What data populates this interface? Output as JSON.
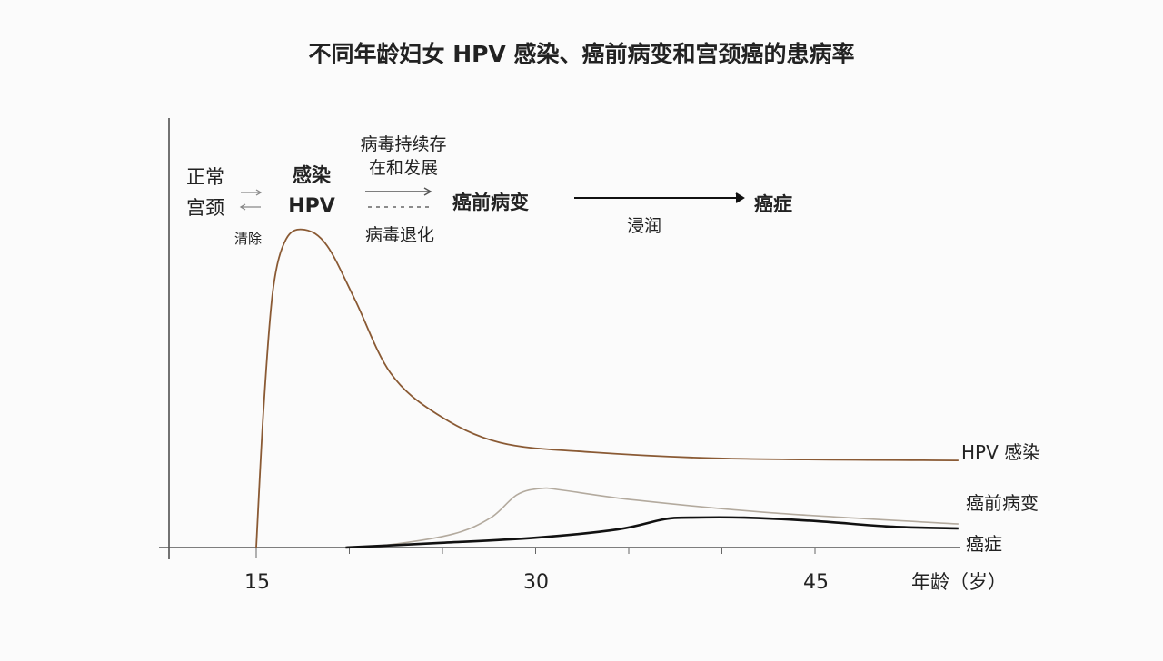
{
  "chart_data": {
    "type": "line",
    "title": "不同年龄妇女 HPV 感染、癌前病变和宫颈癌的患病率",
    "xlabel": "年龄（岁）",
    "ylabel": "",
    "xlim": [
      10,
      53
    ],
    "ylim": [
      0,
      135
    ],
    "x_ticks": [
      15,
      30,
      45
    ],
    "x_tick_labels": [
      "15",
      "30",
      "45"
    ],
    "grid": false,
    "colors": {
      "hpv": "#8a5a34",
      "precancer": "#b3aa9e",
      "cancer": "#111111"
    },
    "series": [
      {
        "name": "HPV 感染",
        "key": "hpv",
        "x": [
          15,
          15.4,
          15.9,
          16.6,
          17.6,
          18.8,
          20.3,
          22.2,
          24.7,
          28.1,
          33,
          40.3,
          52.7
        ],
        "y": [
          0,
          44,
          81,
          97,
          100,
          95,
          78,
          55,
          42,
          33,
          30,
          28,
          27.4
        ]
      },
      {
        "name": "癌前病变",
        "key": "precancer",
        "x": [
          19.8,
          22.2,
          25.6,
          27.6,
          29,
          30.3,
          31.5,
          35.4,
          42.7,
          52.7
        ],
        "y": [
          0,
          0.9,
          4.3,
          9.4,
          16.6,
          18.6,
          18,
          14.9,
          10.9,
          7.4
        ]
      },
      {
        "name": "癌症",
        "key": "cancer",
        "x": [
          19.8,
          24.7,
          30,
          34.4,
          36.9,
          38.3,
          41.2,
          45.1,
          49,
          52.7
        ],
        "y": [
          0,
          1.4,
          3.1,
          5.7,
          8.9,
          9.4,
          9.4,
          8.3,
          6.6,
          6
        ]
      }
    ]
  },
  "flow": {
    "normal_line1": "正常",
    "normal_line2": "宫颈",
    "clear": "清除",
    "infection_line1": "感染",
    "infection_line2": "HPV",
    "persist_line1": "病毒持续存",
    "persist_line2": "在和发展",
    "regress": "病毒退化",
    "precancer": "癌前病变",
    "invasion": "浸润",
    "cancer": "癌症"
  }
}
